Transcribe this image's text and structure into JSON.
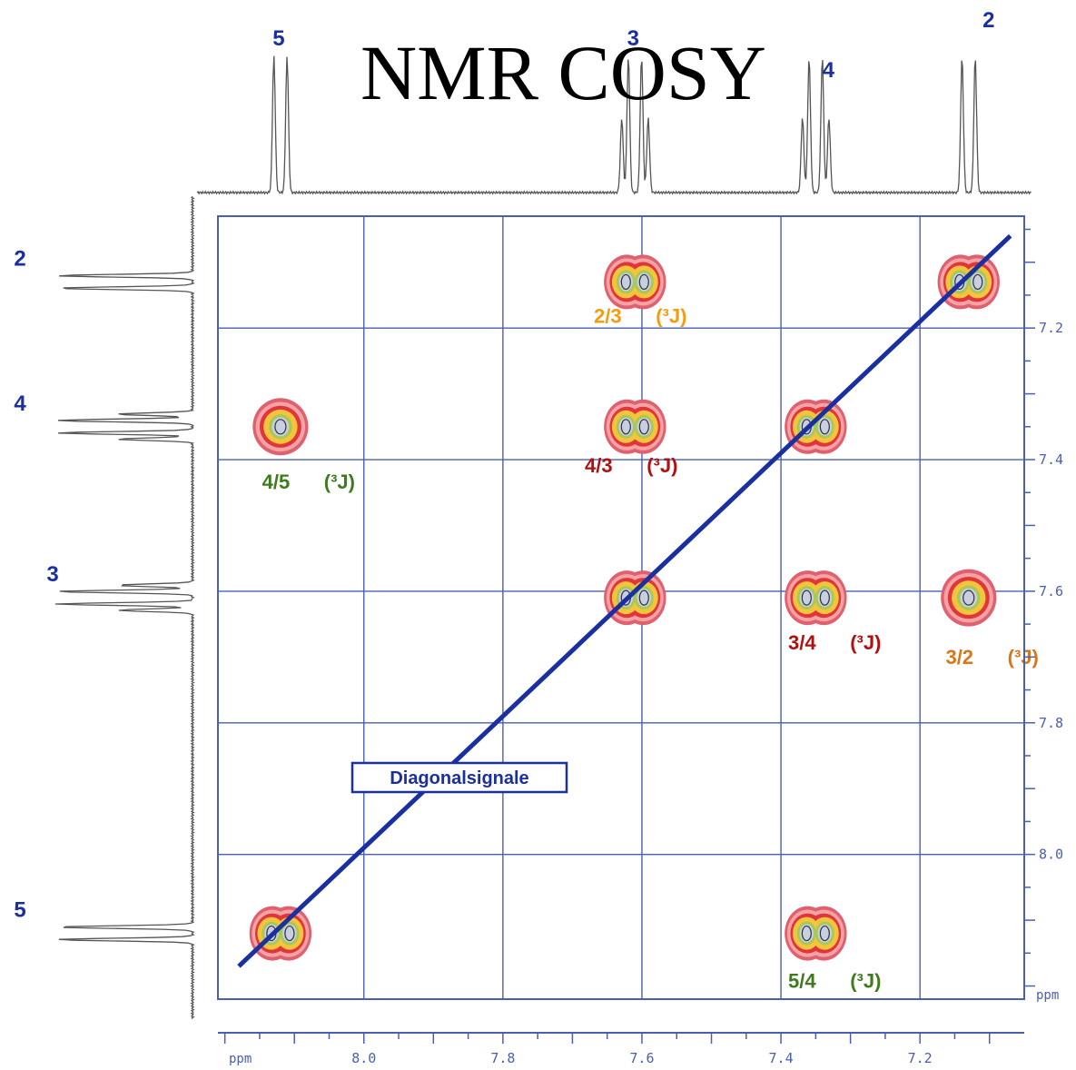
{
  "title": "NMR COSY",
  "chart_data": {
    "type": "scatter",
    "title": "NMR COSY",
    "x_axis": {
      "label": "ppm",
      "range": [
        8.21,
        7.05
      ],
      "ticks": [
        8.0,
        7.8,
        7.6,
        7.4,
        7.2
      ],
      "tick_labels": [
        "8.0",
        "7.8",
        "7.6",
        "7.4",
        "7.2"
      ]
    },
    "y_axis": {
      "label": "ppm",
      "range": [
        7.03,
        8.22
      ],
      "ticks": [
        7.2,
        7.4,
        7.6,
        7.8,
        8.0
      ],
      "tick_labels": [
        "7.2",
        "7.4",
        "7.6",
        "7.8",
        "8.0"
      ],
      "position": "right"
    },
    "grid": true,
    "top_spectrum": {
      "peaks": [
        {
          "label": "5",
          "shift": 8.12
        },
        {
          "label": "3",
          "shift": 7.61
        },
        {
          "label": "4",
          "shift": 7.35
        },
        {
          "label": "2",
          "shift": 7.13
        }
      ]
    },
    "left_spectrum": {
      "peaks": [
        {
          "label": "2",
          "shift": 7.13
        },
        {
          "label": "4",
          "shift": 7.35
        },
        {
          "label": "3",
          "shift": 7.61
        },
        {
          "label": "5",
          "shift": 8.12
        }
      ]
    },
    "diagonal_peaks": [
      {
        "x": 8.12,
        "y": 8.12
      },
      {
        "x": 7.61,
        "y": 7.61
      },
      {
        "x": 7.35,
        "y": 7.35
      },
      {
        "x": 7.13,
        "y": 7.13
      }
    ],
    "cross_peaks": [
      {
        "x": 7.61,
        "y": 7.13,
        "label": "2/3",
        "coupling": "(³J)",
        "color": "#f39c12"
      },
      {
        "x": 7.61,
        "y": 7.35,
        "label": "4/3",
        "coupling": "(³J)",
        "color": "#b01010"
      },
      {
        "x": 8.12,
        "y": 7.35,
        "label": "4/5",
        "coupling": "(³J)",
        "color": "#3f7a1e"
      },
      {
        "x": 7.35,
        "y": 7.61,
        "label": "3/4",
        "coupling": "(³J)",
        "color": "#b01010"
      },
      {
        "x": 7.13,
        "y": 7.61,
        "label": "3/2",
        "coupling": "(³J)",
        "color": "#d9761a"
      },
      {
        "x": 7.35,
        "y": 8.12,
        "label": "5/4",
        "coupling": "(³J)",
        "color": "#3f7a1e"
      }
    ],
    "diagonal_line_label": "Diagonalsignale",
    "colors": {
      "grid": "#4a5fb0",
      "axis_text": "#4a5fb0",
      "diagonal": "#1a2fa0",
      "peak_labels": "#1a2fa0"
    }
  }
}
